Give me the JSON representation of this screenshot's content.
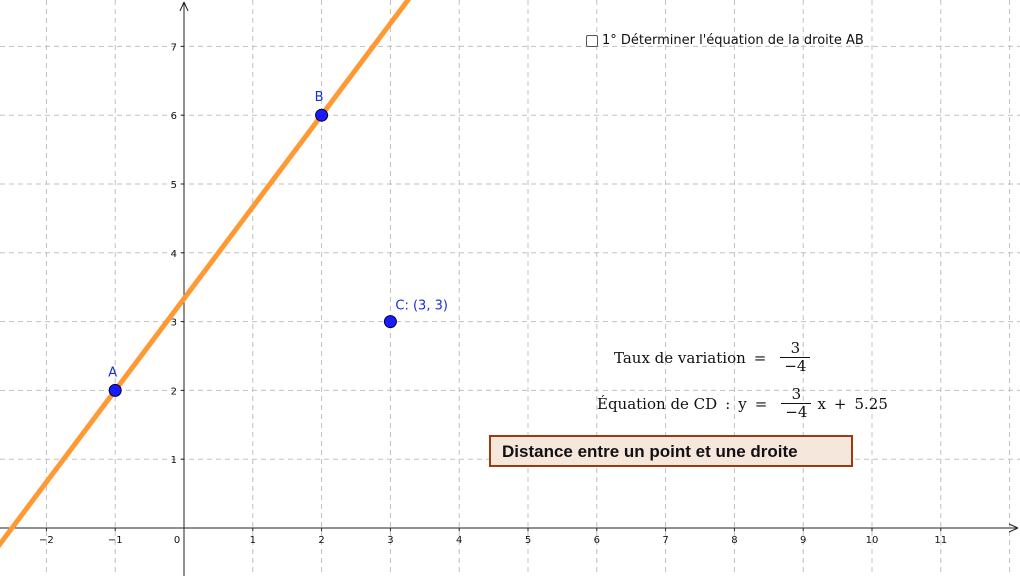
{
  "axes": {
    "x_ticks": [
      "−2",
      "−1",
      "0",
      "1",
      "2",
      "3",
      "4",
      "5",
      "6",
      "7",
      "8",
      "9",
      "10",
      "11"
    ],
    "y_ticks": [
      "1",
      "2",
      "3",
      "4",
      "5",
      "6",
      "7"
    ]
  },
  "line_color": "#ff9933",
  "point_color": "#1a1aff",
  "points": [
    {
      "name": "A",
      "x": -1,
      "y": 2,
      "label": "A"
    },
    {
      "name": "B",
      "x": 2,
      "y": 6,
      "label": "B"
    },
    {
      "name": "C",
      "x": 3,
      "y": 3,
      "label": "C: (3, 3)"
    }
  ],
  "checkbox": {
    "label": "1° Déterminer l'équation de la droite AB",
    "checked": false
  },
  "taux": {
    "label": "Taux de variation",
    "eq": "=",
    "num": "3",
    "den": "−4"
  },
  "equation": {
    "label": "Équation de CD",
    "colon": ":",
    "y": "y",
    "eq": "=",
    "num": "3",
    "den": "−4",
    "x": "x",
    "plus": "+",
    "const": "5.25"
  },
  "title": "Distance entre un point et une droite"
}
